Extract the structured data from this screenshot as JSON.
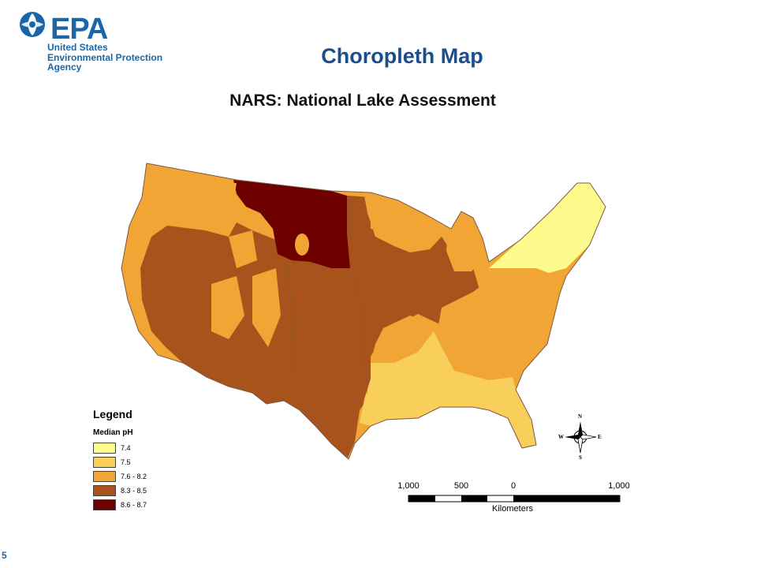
{
  "header": {
    "logo_text": "EPA",
    "logo_lines": [
      "United States",
      "Environmental Protection",
      "Agency"
    ],
    "slide_title": "Choropleth Map"
  },
  "map": {
    "title": "NARS:  National Lake Assessment",
    "classes": [
      {
        "label": "7.4",
        "color": "#fdfb8c"
      },
      {
        "label": "7.5",
        "color": "#f9cf5c"
      },
      {
        "label": "7.6 - 8.2",
        "color": "#f0a535"
      },
      {
        "label": "8.3 - 8.5",
        "color": "#a8531c"
      },
      {
        "label": "8.6 - 8.7",
        "color": "#6e0000"
      }
    ]
  },
  "legend": {
    "title": "Legend",
    "subtitle": "Median pH"
  },
  "compass": {
    "n": "N",
    "s": "S",
    "e": "E",
    "w": "W"
  },
  "scalebar": {
    "ticks": [
      "1,000",
      "500",
      "0",
      "1,000"
    ],
    "units": "Kilometers"
  },
  "page_number": "5"
}
